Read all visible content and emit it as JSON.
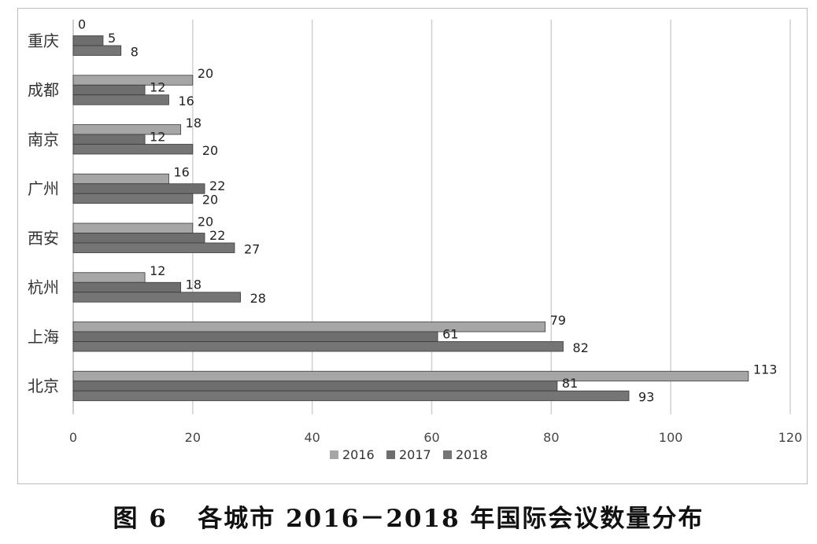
{
  "caption": "图 6   各城市 2016－2018 年国际会议数量分布",
  "chart_data": {
    "type": "bar",
    "orientation": "horizontal",
    "categories": [
      "重庆",
      "成都",
      "南京",
      "广州",
      "西安",
      "杭州",
      "上海",
      "北京"
    ],
    "series": [
      {
        "name": "2016",
        "color": "#a6a6a6",
        "values": [
          0,
          20,
          18,
          16,
          20,
          12,
          79,
          113
        ]
      },
      {
        "name": "2017",
        "color": "#6e6e6e",
        "values": [
          5,
          12,
          12,
          22,
          22,
          18,
          61,
          81
        ]
      },
      {
        "name": "2018",
        "color": "#757575",
        "values": [
          8,
          16,
          20,
          20,
          27,
          28,
          82,
          93
        ]
      }
    ],
    "xlim": [
      0,
      120
    ],
    "xticks": [
      0,
      20,
      40,
      60,
      80,
      100,
      120
    ],
    "grid": "vertical",
    "legend": "bottom",
    "title": "",
    "xlabel": "",
    "ylabel": ""
  }
}
